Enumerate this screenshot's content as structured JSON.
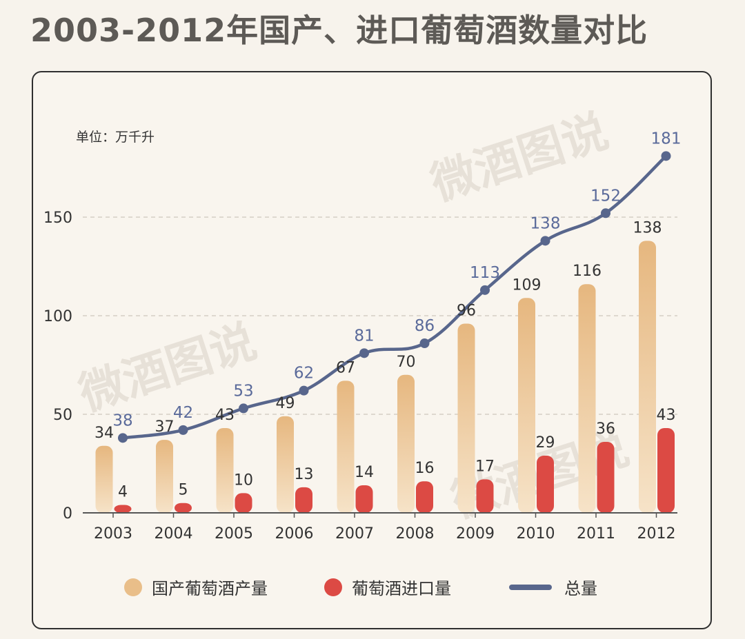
{
  "title": "2003-2012年国产、进口葡萄酒数量对比",
  "unit_label": "单位：万千升",
  "watermark": "微酒图说",
  "colors": {
    "domestic": "#e9be89",
    "domestic_light": "#f4dfc2",
    "import": "#dc4a44",
    "total": "#58668c",
    "total_label": "#5a6a9a",
    "grid": "#cfc8bd",
    "axis": "#555555"
  },
  "legend": {
    "domestic": "国产葡萄酒产量",
    "import": "葡萄酒进口量",
    "total": "总量"
  },
  "chart_data": {
    "type": "bar",
    "title": "2003-2012年国产、进口葡萄酒数量对比",
    "ylabel": "单位：万千升",
    "xlabel": "",
    "ylim": [
      0,
      190
    ],
    "yticks": [
      0,
      50,
      100,
      150
    ],
    "grid": true,
    "legend_position": "bottom",
    "categories": [
      "2003",
      "2004",
      "2005",
      "2006",
      "2007",
      "2008",
      "2009",
      "2010",
      "2011",
      "2012"
    ],
    "series": [
      {
        "name": "国产葡萄酒产量",
        "type": "bar",
        "values": [
          34,
          37,
          43,
          49,
          67,
          70,
          96,
          109,
          116,
          138
        ]
      },
      {
        "name": "葡萄酒进口量",
        "type": "bar",
        "values": [
          4,
          5,
          10,
          13,
          14,
          16,
          17,
          29,
          36,
          43
        ]
      },
      {
        "name": "总量",
        "type": "line",
        "values": [
          38,
          42,
          53,
          62,
          81,
          86,
          113,
          138,
          152,
          181
        ]
      }
    ]
  }
}
